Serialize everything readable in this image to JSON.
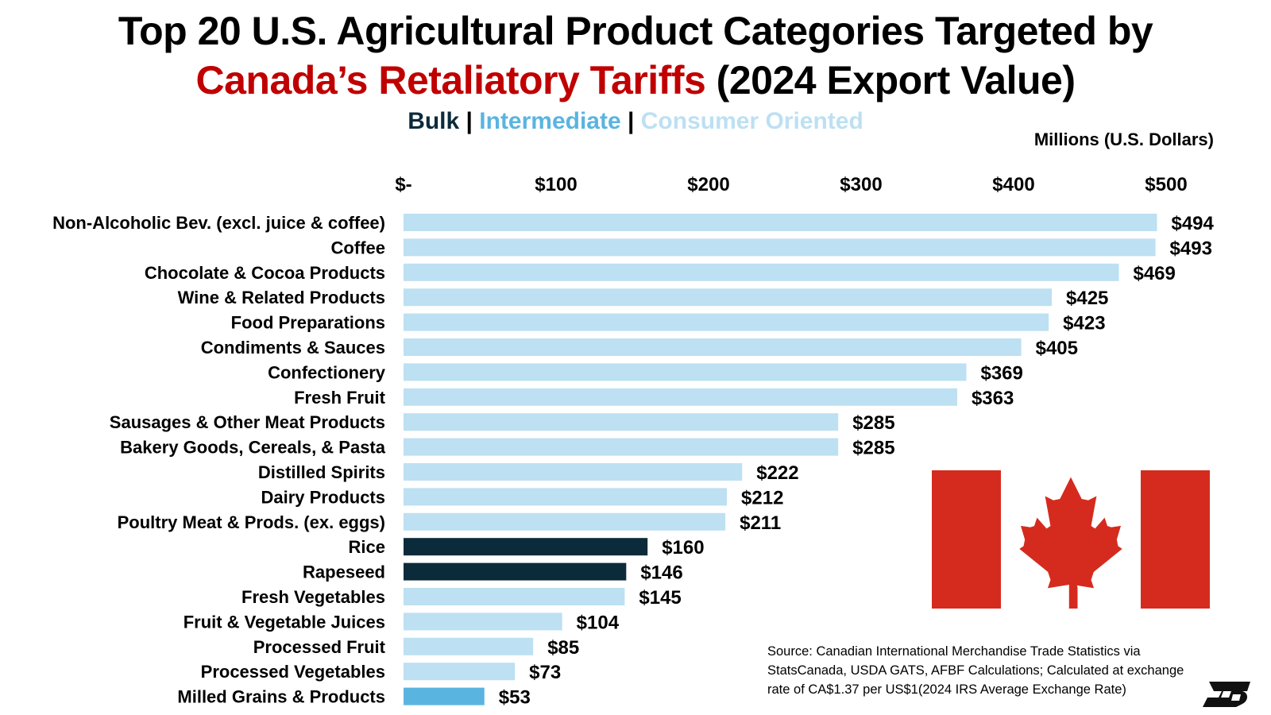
{
  "title": {
    "line1": "Top 20 U.S. Agricultural Product Categories Targeted by",
    "line2_red": "Canada’s Retaliatory Tariffs",
    "line2_rest": " (2024 Export Value)"
  },
  "legend": {
    "bulk": "Bulk",
    "sep": " | ",
    "intermediate": "Intermediate",
    "consumer": "Consumer Oriented"
  },
  "units": "Millions (U.S. Dollars)",
  "source": "Source: Canadian International Merchandise Trade Statistics via StatsCanada, USDA GATS, AFBF Calculations; Calculated at exchange rate of CA$1.37 per US$1(2024 IRS Average Exchange Rate)",
  "colors": {
    "bulk": "#0c2b3a",
    "intermediate": "#5ab4e0",
    "consumer": "#bde0f2",
    "title_red": "#c00000",
    "flag_red": "#d52b1e"
  },
  "icons": {
    "flag": "canada-flag-icon",
    "logo": "farm-bureau-logo-icon"
  },
  "chart_data": {
    "type": "bar",
    "orientation": "horizontal",
    "title": "Top 20 U.S. Agricultural Product Categories Targeted by Canada’s Retaliatory Tariffs (2024 Export Value)",
    "xlabel": "Millions (U.S. Dollars)",
    "xlim": [
      0,
      500
    ],
    "xticks": [
      0,
      100,
      200,
      300,
      400,
      500
    ],
    "xtick_labels": [
      "$-",
      "$100",
      "$200",
      "$300",
      "$400",
      "$500"
    ],
    "grid": false,
    "legend_position": "top-center",
    "categories": [
      "Non-Alcoholic Bev. (excl. juice & coffee)",
      "Coffee",
      "Chocolate & Cocoa Products",
      "Wine & Related Products",
      "Food Preparations",
      "Condiments & Sauces",
      "Confectionery",
      "Fresh Fruit",
      "Sausages & Other Meat Products",
      "Bakery Goods, Cereals, & Pasta",
      "Distilled Spirits",
      "Dairy Products",
      "Poultry Meat & Prods. (ex. eggs)",
      "Rice",
      "Rapeseed",
      "Fresh Vegetables",
      "Fruit & Vegetable Juices",
      "Processed Fruit",
      "Processed Vegetables",
      "Milled Grains & Products"
    ],
    "values": [
      494,
      493,
      469,
      425,
      423,
      405,
      369,
      363,
      285,
      285,
      222,
      212,
      211,
      160,
      146,
      145,
      104,
      85,
      73,
      53
    ],
    "value_labels": [
      "$494",
      "$493",
      "$469",
      "$425",
      "$423",
      "$405",
      "$369",
      "$363",
      "$285",
      "$285",
      "$222",
      "$212",
      "$211",
      "$160",
      "$146",
      "$145",
      "$104",
      "$85",
      "$73",
      "$53"
    ],
    "groups": [
      "consumer",
      "consumer",
      "consumer",
      "consumer",
      "consumer",
      "consumer",
      "consumer",
      "consumer",
      "consumer",
      "consumer",
      "consumer",
      "consumer",
      "consumer",
      "bulk",
      "bulk",
      "consumer",
      "consumer",
      "consumer",
      "consumer",
      "intermediate"
    ]
  }
}
